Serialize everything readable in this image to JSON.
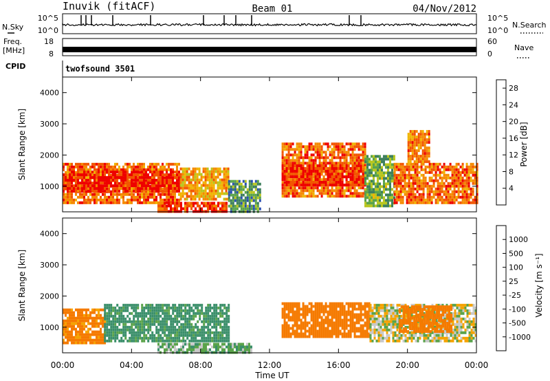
{
  "header": {
    "station": "Inuvik (fitACF)",
    "beam": "Beam 01",
    "date": "04/Nov/2012"
  },
  "status_panels": {
    "nsky_label": "N.Sky",
    "nsky_ticks": [
      "10^5",
      "10^0"
    ],
    "nsearch_label": "N.Search",
    "nsearch_ticks": [
      "10^5",
      "10^0"
    ],
    "freq_label": "Freq.",
    "freq_unit": "[MHz]",
    "freq_ticks": [
      "18",
      "8"
    ],
    "nave_label": "Nave",
    "nave_ticks": [
      "60",
      "0"
    ],
    "cpid_label": "CPID",
    "cpid_value": "twofsound 3501"
  },
  "chart_data": [
    {
      "type": "heatmap",
      "panel": "power",
      "ylabel": "Slant Range [km]",
      "xlabel": "",
      "x_ticks": [
        "00:00",
        "04:00",
        "08:00",
        "12:00",
        "16:00",
        "20:00",
        "00:00"
      ],
      "xlim_hours": [
        0,
        24
      ],
      "ylim_km": [
        180,
        4500
      ],
      "y_ticks": [
        1000,
        2000,
        3000,
        4000
      ],
      "colorbar": {
        "label": "Power [dB]",
        "tick_labels": [
          "4",
          "8",
          "12",
          "16",
          "20",
          "24",
          "28"
        ],
        "range": [
          0,
          30
        ],
        "colors": [
          "#1a1aff",
          "#2a4fb0",
          "#3d7f5c",
          "#5aa34a",
          "#b8c61e",
          "#f0b400",
          "#f58a00",
          "#f25500",
          "#ee0000"
        ]
      },
      "regions": [
        {
          "x": [
            0.0,
            6.8
          ],
          "y": [
            500,
            1750
          ],
          "value": 24
        },
        {
          "x": [
            0.0,
            6.8
          ],
          "y": [
            800,
            1500
          ],
          "value": 28
        },
        {
          "x": [
            5.5,
            9.5
          ],
          "y": [
            200,
            500
          ],
          "value": 26
        },
        {
          "x": [
            6.8,
            9.6
          ],
          "y": [
            600,
            1600
          ],
          "value": 20
        },
        {
          "x": [
            9.6,
            11.5
          ],
          "y": [
            200,
            1200
          ],
          "value": 10
        },
        {
          "x": [
            12.7,
            17.5
          ],
          "y": [
            700,
            2400
          ],
          "value": 24
        },
        {
          "x": [
            12.7,
            17.5
          ],
          "y": [
            1000,
            1700
          ],
          "value": 28
        },
        {
          "x": [
            17.5,
            19.2
          ],
          "y": [
            400,
            2000
          ],
          "value": 12
        },
        {
          "x": [
            19.2,
            24.0
          ],
          "y": [
            500,
            1750
          ],
          "value": 24
        },
        {
          "x": [
            20.0,
            21.3
          ],
          "y": [
            1800,
            2800
          ],
          "value": 22
        }
      ]
    },
    {
      "type": "heatmap",
      "panel": "velocity",
      "ylabel": "Slant Range [km]",
      "xlabel": "Time UT",
      "x_ticks": [
        "00:00",
        "04:00",
        "08:00",
        "12:00",
        "16:00",
        "20:00",
        "00:00"
      ],
      "xlim_hours": [
        0,
        24
      ],
      "ylim_km": [
        180,
        4500
      ],
      "y_ticks": [
        1000,
        2000,
        3000,
        4000
      ],
      "colorbar": {
        "label": "Velocity [m s⁻¹]",
        "tick_labels": [
          "1000",
          "500",
          "100",
          "25",
          "-25",
          "-100",
          "-500",
          "-1000"
        ],
        "colors": [
          "#1d2fc8",
          "#2a64a0",
          "#3a8f6a",
          "#5aa34a",
          "#c8c8c8",
          "#f5a300",
          "#f57a00",
          "#f04a00",
          "#ee0000"
        ]
      },
      "regions": [
        {
          "x": [
            0.0,
            2.4
          ],
          "y": [
            500,
            1600
          ],
          "value": -150
        },
        {
          "x": [
            2.4,
            9.6
          ],
          "y": [
            600,
            1750
          ],
          "value": 150
        },
        {
          "x": [
            5.5,
            11.0
          ],
          "y": [
            200,
            500
          ],
          "value": 60
        },
        {
          "x": [
            12.7,
            17.8
          ],
          "y": [
            700,
            1800
          ],
          "value": -300
        },
        {
          "x": [
            17.8,
            24.0
          ],
          "y": [
            600,
            1750
          ],
          "value": 0
        },
        {
          "x": [
            19.5,
            22.5
          ],
          "y": [
            900,
            1700
          ],
          "value": -200
        }
      ]
    }
  ]
}
